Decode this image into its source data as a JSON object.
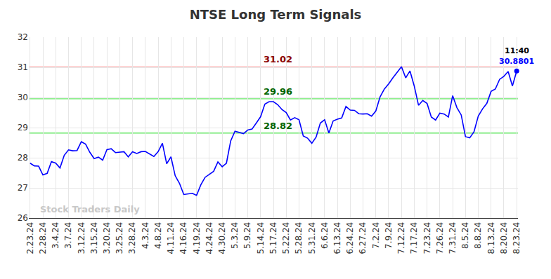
{
  "chart_data": {
    "type": "line",
    "title": "NTSE Long Term Signals",
    "color": "#0000ff",
    "marker": "circle",
    "grid": true,
    "ylim": [
      26,
      32
    ],
    "yticks": [
      26,
      27,
      28,
      29,
      30,
      31,
      32
    ],
    "categories": [
      "2.23.24",
      null,
      null,
      "2.28.24",
      null,
      null,
      "3.4.24",
      null,
      null,
      "3.7.24",
      null,
      null,
      "3.12.24",
      null,
      null,
      "3.15.24",
      null,
      null,
      "3.20.24",
      null,
      null,
      "3.25.24",
      null,
      null,
      "3.28.24",
      null,
      null,
      "4.3.24",
      null,
      null,
      "4.8.24",
      null,
      null,
      "4.11.24",
      null,
      null,
      "4.16.24",
      null,
      null,
      "4.19.24",
      null,
      null,
      "4.24.24",
      null,
      null,
      "4.30.24",
      null,
      null,
      "5.3.24",
      null,
      null,
      "5.9.24",
      null,
      null,
      "5.14.24",
      null,
      null,
      "5.17.24",
      null,
      null,
      "5.22.24",
      null,
      null,
      "5.28.24",
      null,
      null,
      "5.31.24",
      null,
      null,
      "6.6.24",
      null,
      null,
      "6.13.24",
      null,
      null,
      "6.24.24",
      null,
      null,
      "6.27.24",
      null,
      null,
      "7.2.24",
      null,
      null,
      "7.9.24",
      null,
      null,
      "7.12.24",
      null,
      null,
      "7.17.24",
      null,
      null,
      "7.23.24",
      null,
      null,
      "7.26.24",
      null,
      null,
      "7.31.24",
      null,
      null,
      "8.5.24",
      null,
      null,
      "8.8.24",
      null,
      null,
      "8.13.24",
      null,
      null,
      "8.20.24",
      null,
      null,
      "8.23.24"
    ],
    "values": [
      27.82,
      27.73,
      27.72,
      27.43,
      27.48,
      27.87,
      27.82,
      27.66,
      28.08,
      28.26,
      28.23,
      28.24,
      28.53,
      28.45,
      28.18,
      27.97,
      28.02,
      27.92,
      28.27,
      28.3,
      28.17,
      28.18,
      28.2,
      28.03,
      28.2,
      28.14,
      28.2,
      28.21,
      28.12,
      28.04,
      28.2,
      28.48,
      27.8,
      28.03,
      27.4,
      27.15,
      26.78,
      26.8,
      26.82,
      26.75,
      27.1,
      27.35,
      27.44,
      27.55,
      27.86,
      27.7,
      27.82,
      28.56,
      28.88,
      28.84,
      28.8,
      28.92,
      28.95,
      29.15,
      29.36,
      29.78,
      29.86,
      29.86,
      29.76,
      29.6,
      29.5,
      29.25,
      29.33,
      29.26,
      28.72,
      28.65,
      28.48,
      28.68,
      29.15,
      29.26,
      28.82,
      29.22,
      29.28,
      29.32,
      29.7,
      29.58,
      29.57,
      29.46,
      29.45,
      29.46,
      29.38,
      29.55,
      30.02,
      30.28,
      30.45,
      30.65,
      30.85,
      31.02,
      30.65,
      30.88,
      30.38,
      29.74,
      29.9,
      29.8,
      29.35,
      29.25,
      29.48,
      29.45,
      29.35,
      30.06,
      29.66,
      29.42,
      28.7,
      28.66,
      28.86,
      29.38,
      29.62,
      29.8,
      30.2,
      30.28,
      30.6,
      30.7,
      30.86,
      30.38,
      30.8801
    ],
    "signal_lines": [
      {
        "value": 31.02,
        "label": "31.02",
        "color": "#ffcccc",
        "label_color": "#8b0000"
      },
      {
        "value": 29.96,
        "label": "29.96",
        "color": "#90ee90",
        "label_color": "#006400"
      },
      {
        "value": 28.82,
        "label": "28.82",
        "color": "#90ee90",
        "label_color": "#006400"
      }
    ],
    "last_point": {
      "time": "11:40",
      "label": "30.8801"
    },
    "watermark": "Stock Traders Daily"
  }
}
